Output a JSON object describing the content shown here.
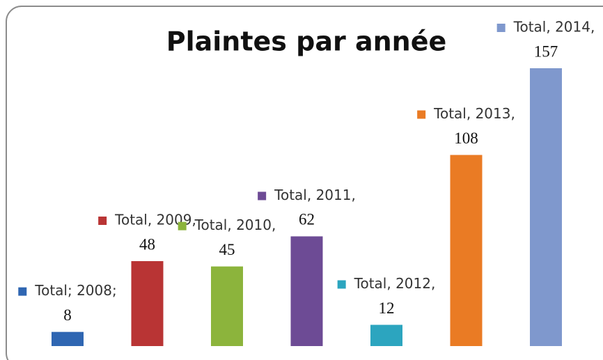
{
  "chart_data": {
    "type": "bar",
    "title": "Plaintes par année",
    "categories": [
      "Total; 2008;",
      "Total, 2009,",
      "Total, 2010,",
      "Total, 2011,",
      "Total, 2012,",
      "Total, 2013,",
      "Total, 2014,"
    ],
    "values": [
      8,
      48,
      45,
      62,
      12,
      108,
      157
    ],
    "colors": [
      "#2f66b2",
      "#b93434",
      "#8cb43c",
      "#6d4b95",
      "#2ca5bf",
      "#ea7b24",
      "#7f98cd"
    ]
  }
}
